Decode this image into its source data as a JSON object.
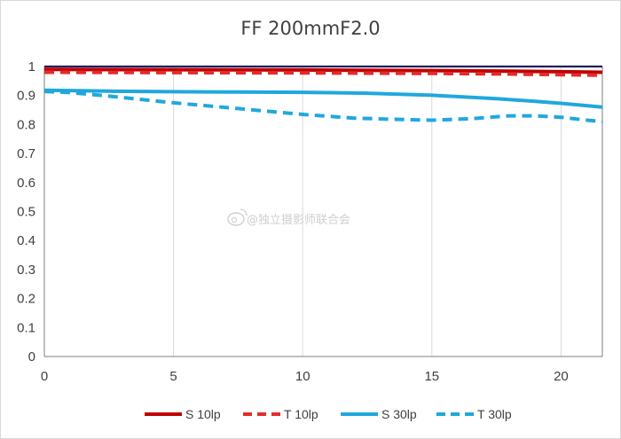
{
  "chart_data": {
    "type": "line",
    "title": "FF  200mmF2.0",
    "xlabel": "",
    "ylabel": "",
    "xlim": [
      0,
      21.6
    ],
    "ylim": [
      0,
      1
    ],
    "x_ticks": [
      "0",
      "5",
      "10",
      "15",
      "20"
    ],
    "y_ticks": [
      "0",
      "0.1",
      "0.2",
      "0.3",
      "0.4",
      "0.5",
      "0.6",
      "0.7",
      "0.8",
      "0.9",
      "1"
    ],
    "grid": "vertical",
    "legend_position": "bottom",
    "series": [
      {
        "name": "S 10lp",
        "color": "#c00000",
        "dash": "solid",
        "x": [
          0,
          5,
          10,
          15,
          18,
          20,
          21.6
        ],
        "y": [
          0.99,
          0.989,
          0.988,
          0.986,
          0.984,
          0.982,
          0.98
        ]
      },
      {
        "name": "T 10lp",
        "color": "#e52b2b",
        "dash": "dashed",
        "x": [
          0,
          5,
          10,
          15,
          18,
          20,
          21.6
        ],
        "y": [
          0.98,
          0.979,
          0.978,
          0.976,
          0.974,
          0.972,
          0.97
        ]
      },
      {
        "name": "S 30lp",
        "color": "#1fa8dd",
        "dash": "solid",
        "x": [
          0,
          2.5,
          5,
          7.5,
          10,
          12.5,
          15,
          17.5,
          19,
          20,
          21.6
        ],
        "y": [
          0.918,
          0.915,
          0.913,
          0.912,
          0.911,
          0.908,
          0.901,
          0.889,
          0.88,
          0.873,
          0.86
        ]
      },
      {
        "name": "T 30lp",
        "color": "#1fa8dd",
        "dash": "dashed",
        "x": [
          0,
          1,
          2.5,
          5,
          7.5,
          10,
          12,
          13.5,
          15,
          16.5,
          18,
          19,
          20,
          21,
          21.6
        ],
        "y": [
          0.914,
          0.91,
          0.898,
          0.875,
          0.855,
          0.835,
          0.822,
          0.818,
          0.815,
          0.82,
          0.83,
          0.83,
          0.825,
          0.815,
          0.81
        ]
      }
    ]
  },
  "watermark": "@独立摄影师联合会",
  "colors": {
    "axis": "#7f7f7f",
    "grid": "#d9d9d9",
    "text": "#404040",
    "top_border": "#1f1f5f"
  }
}
